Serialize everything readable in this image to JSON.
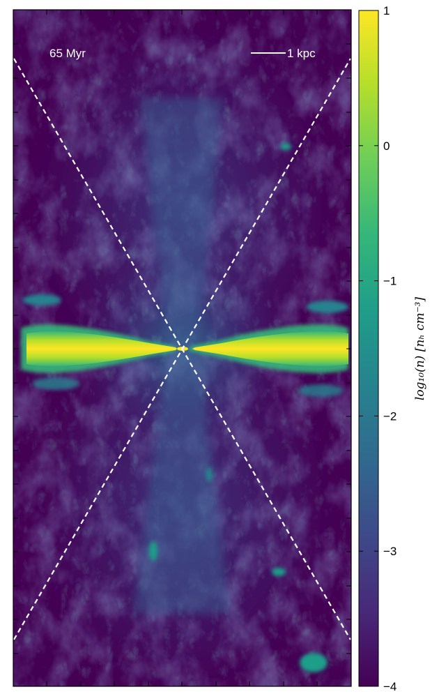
{
  "panel": {
    "time_label": "65 Myr",
    "scale_bar_label": "1 kpc"
  },
  "colorbar": {
    "label": "log₁₀(n) [nₕ cm⁻³]",
    "ticks": [
      {
        "value": 1,
        "label": "1"
      },
      {
        "value": 0,
        "label": "0"
      },
      {
        "value": -1,
        "label": "−1"
      },
      {
        "value": -2,
        "label": "−2"
      },
      {
        "value": -3,
        "label": "−3"
      },
      {
        "value": -4,
        "label": "−4"
      }
    ],
    "range": [
      -4,
      1
    ],
    "colormap": "viridis",
    "colors": [
      "#440154",
      "#482878",
      "#3e4989",
      "#31688e",
      "#26828e",
      "#1f9e89",
      "#35b779",
      "#6ece58",
      "#b5de2b",
      "#fde725"
    ]
  },
  "overlay": {
    "cone_lines_style": "white dashed",
    "cone_lines_color": "#ffffff"
  }
}
